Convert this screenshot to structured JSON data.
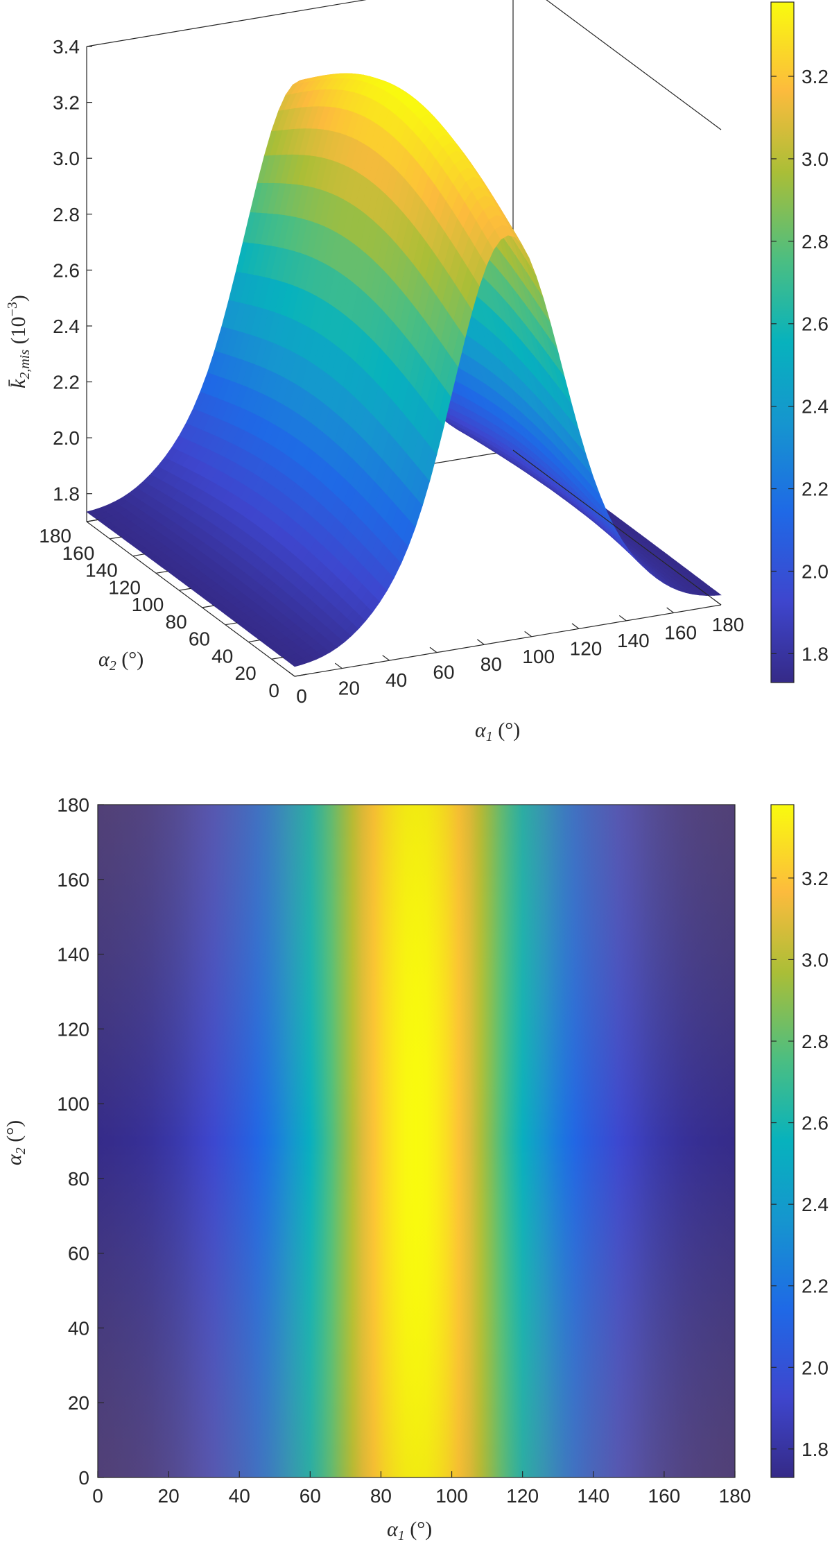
{
  "chart_data": [
    {
      "type": "surface",
      "description_axes": {
        "xlabel": "α₁ (°)",
        "ylabel": "α₂ (°)",
        "zlabel": "k̄₂,mis (10⁻³)"
      },
      "xlim": [
        0,
        180
      ],
      "ylim": [
        0,
        180
      ],
      "zlim": [
        1.7,
        3.4
      ],
      "x_ticks": [
        "0",
        "20",
        "40",
        "60",
        "80",
        "100",
        "120",
        "140",
        "160",
        "180"
      ],
      "y_ticks": [
        "0",
        "20",
        "40",
        "60",
        "80",
        "100",
        "120",
        "140",
        "160",
        "180"
      ],
      "z_ticks": [
        "1.8",
        "2.0",
        "2.2",
        "2.4",
        "2.6",
        "2.8",
        "3.0",
        "3.2",
        "3.4"
      ],
      "colorbar": {
        "range": [
          1.73,
          3.38
        ],
        "ticks": [
          "1.8",
          "2.0",
          "2.2",
          "2.4",
          "2.6",
          "2.8",
          "3.0",
          "3.2"
        ]
      },
      "colormap": "parula",
      "grid": false,
      "surface_samples": {
        "alpha1": [
          0,
          20,
          40,
          60,
          80,
          90,
          100,
          120,
          140,
          160,
          180
        ],
        "alpha2": [
          0,
          90,
          180
        ],
        "z": [
          [
            1.73,
            1.78,
            2.05,
            2.55,
            3.05,
            3.15,
            3.05,
            2.55,
            2.05,
            1.78,
            1.73
          ],
          [
            1.73,
            1.8,
            2.15,
            2.75,
            3.3,
            3.38,
            3.3,
            2.75,
            2.15,
            1.8,
            1.73
          ],
          [
            1.73,
            1.78,
            2.05,
            2.55,
            3.05,
            3.15,
            3.05,
            2.55,
            2.05,
            1.78,
            1.73
          ]
        ]
      }
    },
    {
      "type": "heatmap",
      "xlabel": "α₁ (°)",
      "ylabel": "α₂ (°)",
      "xlim": [
        0,
        180
      ],
      "ylim": [
        0,
        180
      ],
      "x_ticks": [
        "0",
        "20",
        "40",
        "60",
        "80",
        "100",
        "120",
        "140",
        "160",
        "180"
      ],
      "y_ticks": [
        "0",
        "20",
        "40",
        "60",
        "80",
        "100",
        "120",
        "140",
        "160",
        "180"
      ],
      "colorbar": {
        "range": [
          1.73,
          3.38
        ],
        "ticks": [
          "1.8",
          "2.0",
          "2.2",
          "2.4",
          "2.6",
          "2.8",
          "3.0",
          "3.2"
        ]
      },
      "colormap": "parula",
      "grid": false
    }
  ]
}
